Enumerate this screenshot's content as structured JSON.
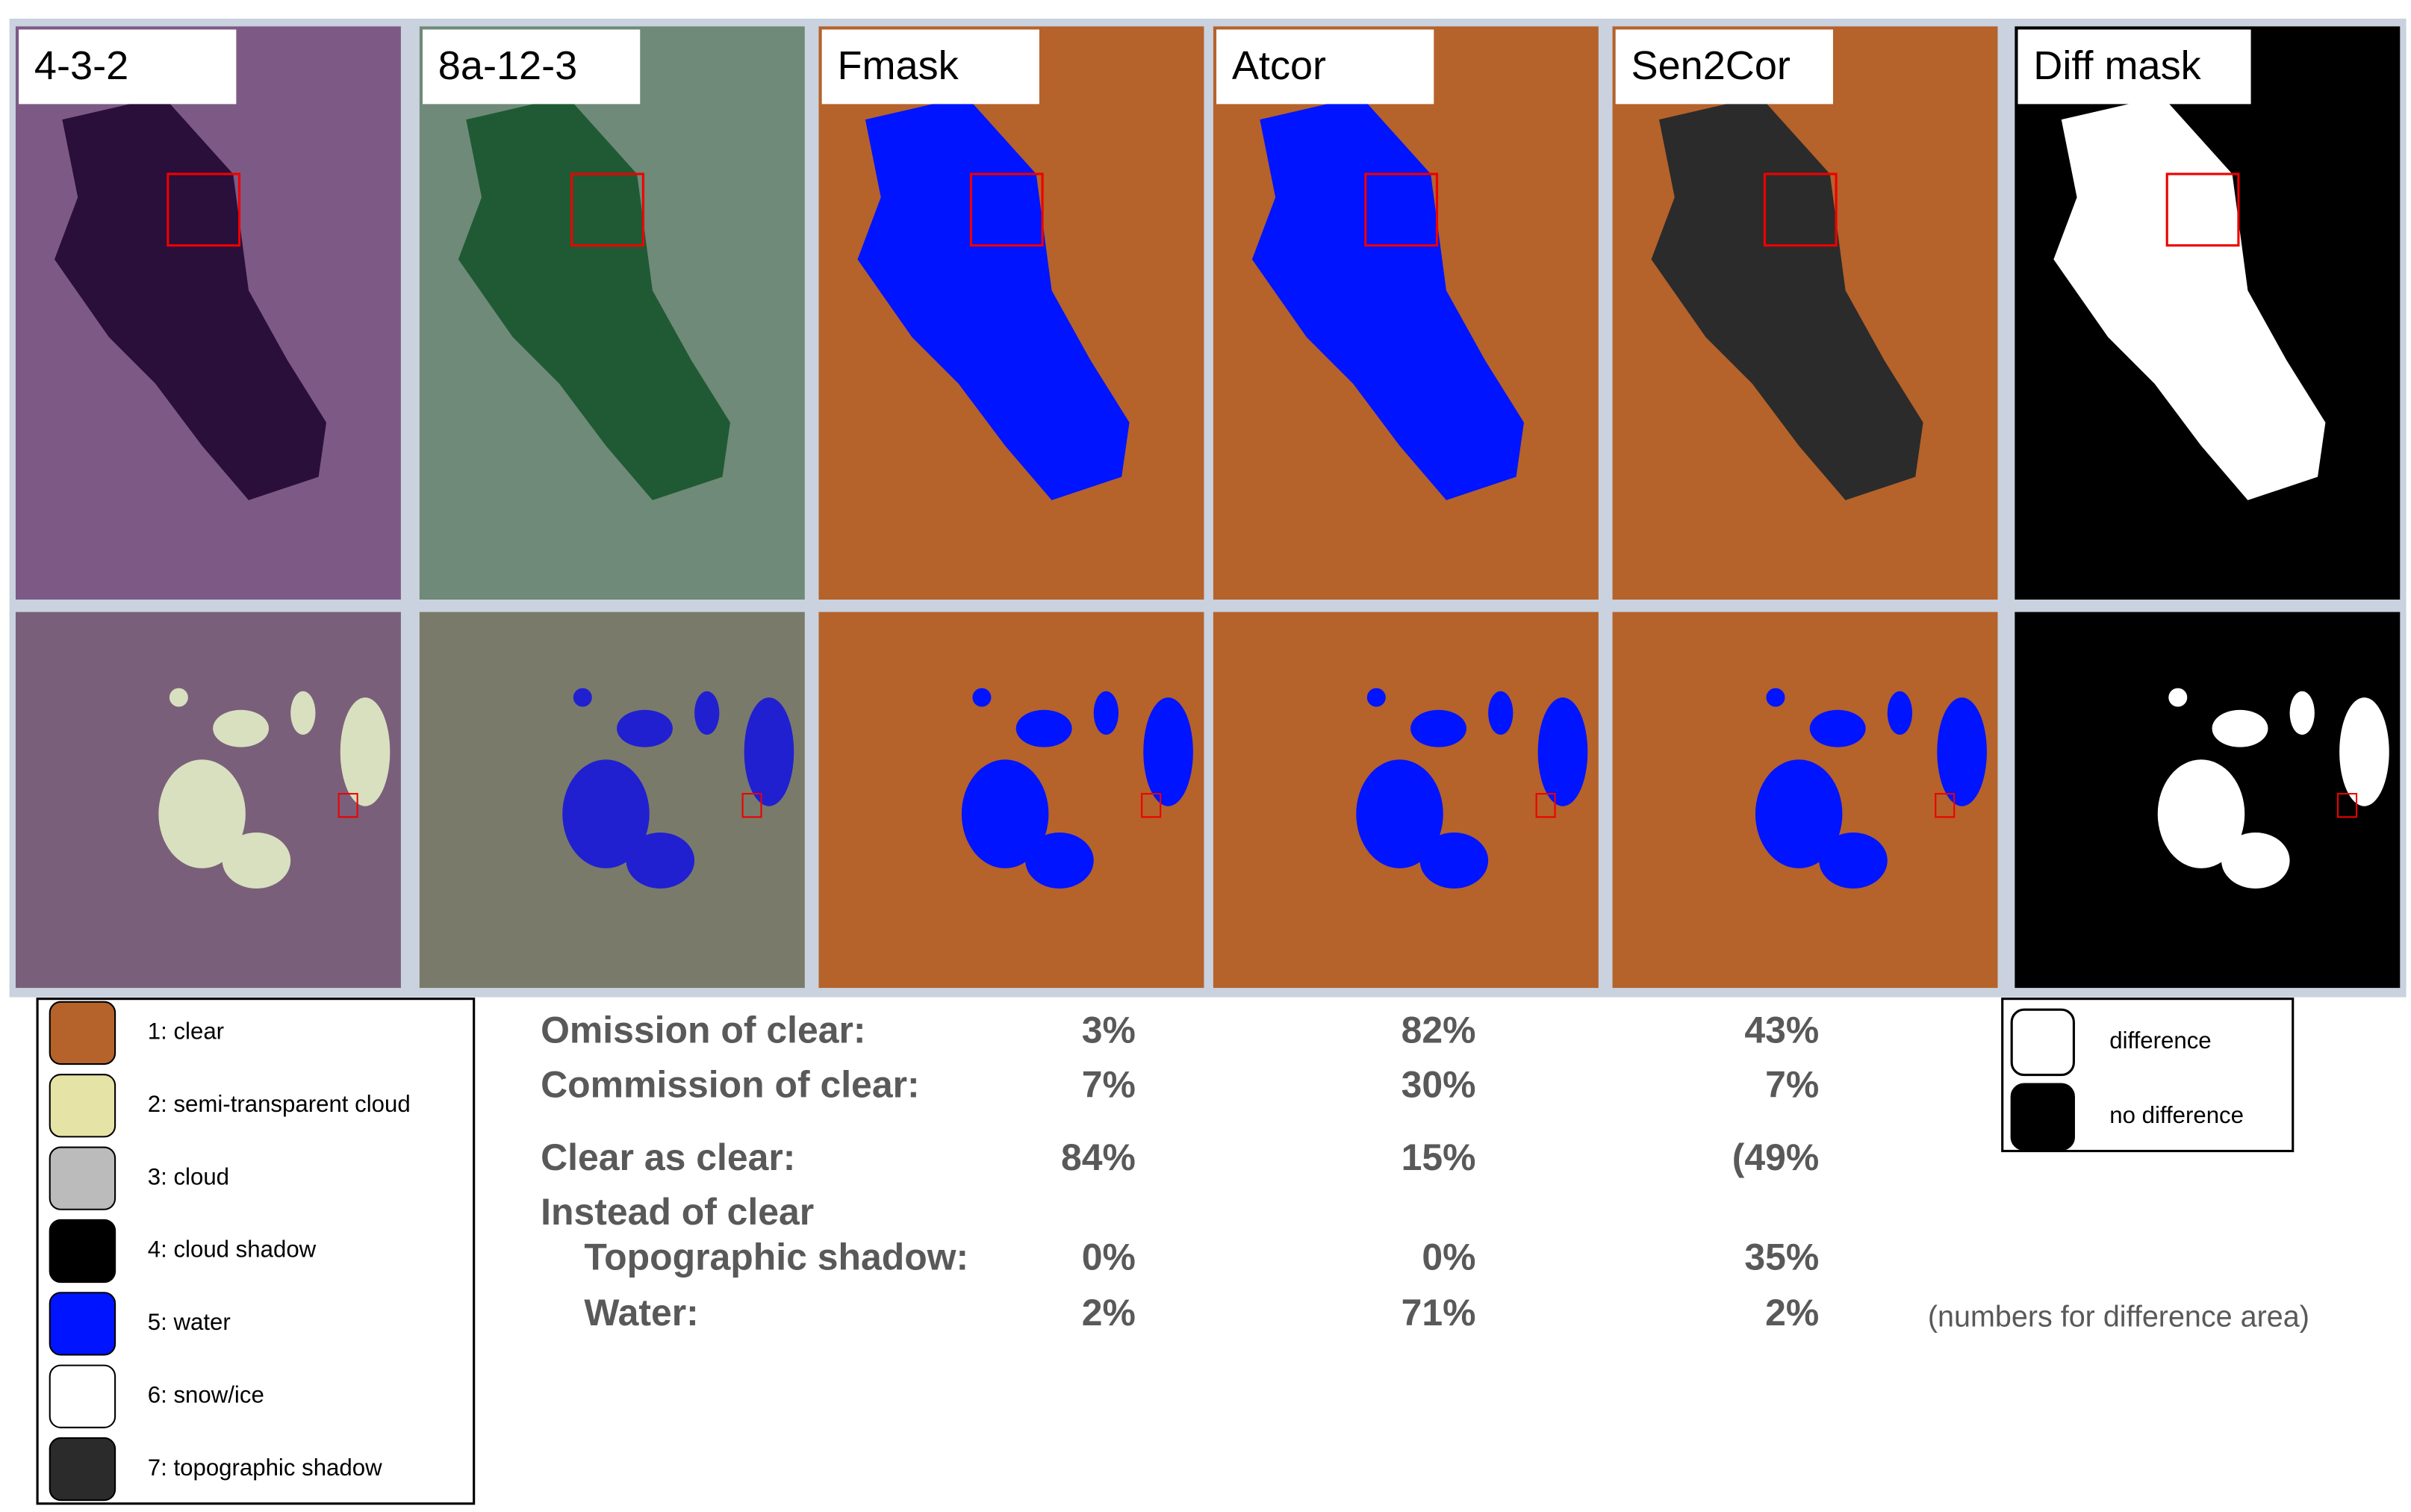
{
  "panels": [
    "4-3-2",
    "8a-12-3",
    "Fmask",
    "Atcor",
    "Sen2Cor",
    "Diff mask"
  ],
  "legend": [
    "1: clear",
    "2: semi-transparent cloud",
    "3: cloud",
    "4: cloud shadow",
    "5: water",
    "6: snow/ice",
    "7: topographic shadow"
  ],
  "table": {
    "rows": [
      [
        "Omission of clear:",
        "3%",
        "82%",
        "43%"
      ],
      [
        "Commission of clear:",
        "7%",
        "30%",
        "7%"
      ],
      [
        "Clear as clear:",
        "84%",
        "15%",
        "(49%"
      ],
      [
        "Instead of clear"
      ],
      [
        "Topographic shadow:",
        "0%",
        "0%",
        "35%"
      ],
      [
        "Water:",
        "2%",
        "71%",
        "2%"
      ]
    ]
  },
  "diff_legend": [
    "difference",
    "no difference"
  ],
  "note": "(numbers  for difference area)"
}
